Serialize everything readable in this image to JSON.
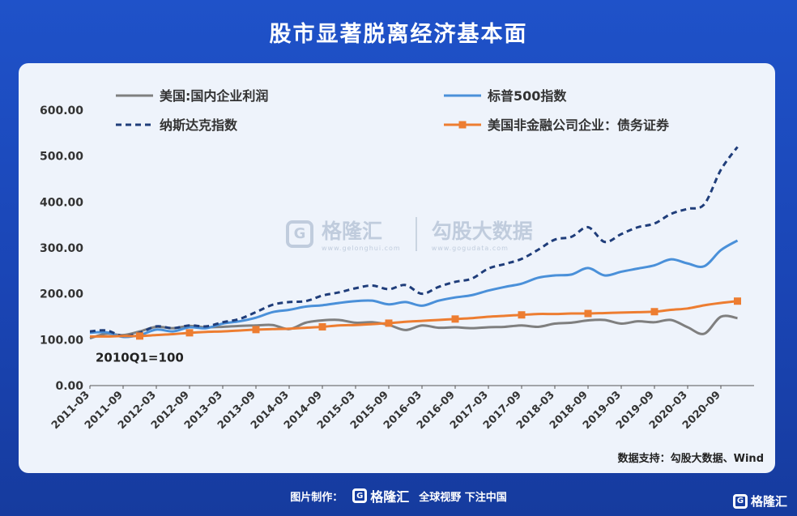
{
  "title": "股市显著脱离经济基本面",
  "source": "数据支持：勾股大数据、Wind",
  "watermark": {
    "brand": "格隆汇",
    "brand_url": "www.gelonghui.com",
    "partner": "勾股大数据",
    "partner_url": "www.gogudata.com"
  },
  "footer": {
    "made_by": "图片制作：",
    "brand": "格隆汇",
    "slogan": "全球视野 下注中国"
  },
  "corner_brand": "格隆汇",
  "chart_data": {
    "type": "line",
    "base_note": "2010Q1=100",
    "ylim": [
      0,
      600
    ],
    "yticks": [
      "0.00",
      "100.00",
      "200.00",
      "300.00",
      "400.00",
      "500.00",
      "600.00"
    ],
    "x_start": "2011-03",
    "x_end": "2021-03",
    "x_tick_labels": [
      "2011-03",
      "2011-09",
      "2012-03",
      "2012-09",
      "2013-03",
      "2013-09",
      "2014-03",
      "2014-09",
      "2015-03",
      "2015-09",
      "2016-03",
      "2016-09",
      "2017-03",
      "2017-09",
      "2018-03",
      "2018-09",
      "2019-03",
      "2019-09",
      "2020-03",
      "2020-09"
    ],
    "series": [
      {
        "name": "美国:国内企业利润",
        "color": "#7f7f7f",
        "style": "solid",
        "points": [
          [
            "2011-03",
            103
          ],
          [
            "2011-06",
            113
          ],
          [
            "2011-09",
            110
          ],
          [
            "2011-12",
            118
          ],
          [
            "2012-03",
            128
          ],
          [
            "2012-06",
            125
          ],
          [
            "2012-09",
            130
          ],
          [
            "2012-12",
            127
          ],
          [
            "2013-03",
            128
          ],
          [
            "2013-06",
            130
          ],
          [
            "2013-09",
            131
          ],
          [
            "2013-12",
            132
          ],
          [
            "2014-03",
            123
          ],
          [
            "2014-06",
            137
          ],
          [
            "2014-09",
            142
          ],
          [
            "2014-12",
            143
          ],
          [
            "2015-03",
            137
          ],
          [
            "2015-06",
            138
          ],
          [
            "2015-09",
            132
          ],
          [
            "2015-12",
            121
          ],
          [
            "2016-03",
            131
          ],
          [
            "2016-06",
            126
          ],
          [
            "2016-09",
            127
          ],
          [
            "2016-12",
            125
          ],
          [
            "2017-03",
            127
          ],
          [
            "2017-06",
            128
          ],
          [
            "2017-09",
            131
          ],
          [
            "2017-12",
            128
          ],
          [
            "2018-03",
            135
          ],
          [
            "2018-06",
            137
          ],
          [
            "2018-09",
            142
          ],
          [
            "2018-12",
            143
          ],
          [
            "2019-03",
            135
          ],
          [
            "2019-06",
            140
          ],
          [
            "2019-09",
            138
          ],
          [
            "2019-12",
            143
          ],
          [
            "2020-03",
            127
          ],
          [
            "2020-06",
            113
          ],
          [
            "2020-09",
            150
          ],
          [
            "2020-12",
            147
          ]
        ]
      },
      {
        "name": "标普500指数",
        "color": "#4a90d9",
        "style": "solid",
        "points": [
          [
            "2011-03",
            115
          ],
          [
            "2011-06",
            116
          ],
          [
            "2011-09",
            106
          ],
          [
            "2011-12",
            110
          ],
          [
            "2012-03",
            122
          ],
          [
            "2012-06",
            118
          ],
          [
            "2012-09",
            127
          ],
          [
            "2012-12",
            125
          ],
          [
            "2013-03",
            135
          ],
          [
            "2013-06",
            140
          ],
          [
            "2013-09",
            148
          ],
          [
            "2013-12",
            160
          ],
          [
            "2014-03",
            165
          ],
          [
            "2014-06",
            172
          ],
          [
            "2014-09",
            175
          ],
          [
            "2014-12",
            180
          ],
          [
            "2015-03",
            184
          ],
          [
            "2015-06",
            185
          ],
          [
            "2015-09",
            177
          ],
          [
            "2015-12",
            182
          ],
          [
            "2016-03",
            174
          ],
          [
            "2016-06",
            185
          ],
          [
            "2016-09",
            192
          ],
          [
            "2016-12",
            197
          ],
          [
            "2017-03",
            207
          ],
          [
            "2017-06",
            215
          ],
          [
            "2017-09",
            222
          ],
          [
            "2017-12",
            235
          ],
          [
            "2018-03",
            240
          ],
          [
            "2018-06",
            242
          ],
          [
            "2018-09",
            256
          ],
          [
            "2018-12",
            240
          ],
          [
            "2019-03",
            248
          ],
          [
            "2019-06",
            255
          ],
          [
            "2019-09",
            262
          ],
          [
            "2019-12",
            275
          ],
          [
            "2020-03",
            266
          ],
          [
            "2020-06",
            260
          ],
          [
            "2020-09",
            295
          ],
          [
            "2020-12",
            316
          ]
        ]
      },
      {
        "name": "纳斯达克指数",
        "color": "#1f3d7a",
        "style": "dashed",
        "points": [
          [
            "2011-03",
            118
          ],
          [
            "2011-06",
            120
          ],
          [
            "2011-09",
            108
          ],
          [
            "2011-12",
            115
          ],
          [
            "2012-03",
            129
          ],
          [
            "2012-06",
            125
          ],
          [
            "2012-09",
            131
          ],
          [
            "2012-12",
            129
          ],
          [
            "2013-03",
            138
          ],
          [
            "2013-06",
            145
          ],
          [
            "2013-09",
            160
          ],
          [
            "2013-12",
            176
          ],
          [
            "2014-03",
            182
          ],
          [
            "2014-06",
            184
          ],
          [
            "2014-09",
            196
          ],
          [
            "2014-12",
            203
          ],
          [
            "2015-03",
            212
          ],
          [
            "2015-06",
            218
          ],
          [
            "2015-09",
            210
          ],
          [
            "2015-12",
            219
          ],
          [
            "2016-03",
            200
          ],
          [
            "2016-06",
            215
          ],
          [
            "2016-09",
            226
          ],
          [
            "2016-12",
            233
          ],
          [
            "2017-03",
            255
          ],
          [
            "2017-06",
            265
          ],
          [
            "2017-09",
            276
          ],
          [
            "2017-12",
            296
          ],
          [
            "2018-03",
            318
          ],
          [
            "2018-06",
            324
          ],
          [
            "2018-09",
            345
          ],
          [
            "2018-12",
            313
          ],
          [
            "2019-03",
            330
          ],
          [
            "2019-06",
            345
          ],
          [
            "2019-09",
            353
          ],
          [
            "2019-12",
            374
          ],
          [
            "2020-03",
            385
          ],
          [
            "2020-06",
            395
          ],
          [
            "2020-09",
            470
          ],
          [
            "2020-12",
            520
          ]
        ]
      },
      {
        "name": "美国非金融公司企业：债务证券",
        "color": "#ed7d31",
        "style": "solid-marker",
        "points": [
          [
            "2011-03",
            107
          ],
          [
            "2011-06",
            107
          ],
          [
            "2011-09",
            108
          ],
          [
            "2011-12",
            108
          ],
          [
            "2012-03",
            110
          ],
          [
            "2012-06",
            112
          ],
          [
            "2012-09",
            115
          ],
          [
            "2012-12",
            117
          ],
          [
            "2013-03",
            118
          ],
          [
            "2013-06",
            120
          ],
          [
            "2013-09",
            122
          ],
          [
            "2013-12",
            123
          ],
          [
            "2014-03",
            124
          ],
          [
            "2014-06",
            126
          ],
          [
            "2014-09",
            128
          ],
          [
            "2014-12",
            131
          ],
          [
            "2015-03",
            132
          ],
          [
            "2015-06",
            134
          ],
          [
            "2015-09",
            136
          ],
          [
            "2015-12",
            139
          ],
          [
            "2016-03",
            141
          ],
          [
            "2016-06",
            143
          ],
          [
            "2016-09",
            145
          ],
          [
            "2016-12",
            147
          ],
          [
            "2017-03",
            150
          ],
          [
            "2017-06",
            152
          ],
          [
            "2017-09",
            154
          ],
          [
            "2017-12",
            156
          ],
          [
            "2018-03",
            156
          ],
          [
            "2018-06",
            157
          ],
          [
            "2018-09",
            157
          ],
          [
            "2018-12",
            158
          ],
          [
            "2019-03",
            159
          ],
          [
            "2019-06",
            160
          ],
          [
            "2019-09",
            161
          ],
          [
            "2019-12",
            165
          ],
          [
            "2020-03",
            168
          ],
          [
            "2020-06",
            175
          ],
          [
            "2020-09",
            180
          ],
          [
            "2020-12",
            184
          ]
        ]
      }
    ],
    "marker_dates": [
      "2011-12",
      "2012-09",
      "2013-09",
      "2014-09",
      "2015-09",
      "2016-09",
      "2017-09",
      "2018-09",
      "2019-09",
      "2020-12"
    ],
    "legend_placement": "top"
  }
}
